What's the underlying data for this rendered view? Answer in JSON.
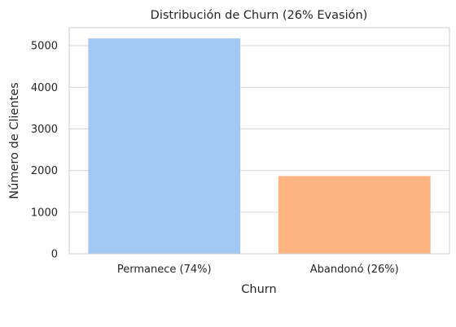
{
  "chart_data": {
    "type": "bar",
    "title": "Distribución de Churn (26% Evasión)",
    "xlabel": "Churn",
    "ylabel": "Número de Clientes",
    "categories": [
      "Permanece (74%)",
      "Abandonó (26%)"
    ],
    "values": [
      5174,
      1869
    ],
    "colors": [
      "#a1c9f4",
      "#ffb482"
    ],
    "ylim": [
      0,
      5432
    ],
    "yticks": [
      0,
      1000,
      2000,
      3000,
      4000,
      5000
    ],
    "grid": "y"
  }
}
